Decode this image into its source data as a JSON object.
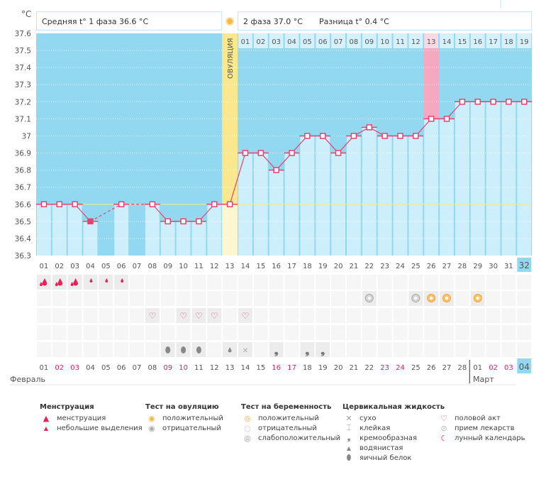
{
  "chart_data": {
    "type": "line",
    "title": "",
    "ylabel": "°C",
    "ylim": [
      36.3,
      37.6
    ],
    "yticks": [
      "37.6",
      "37.5",
      "37.4",
      "37.3",
      "37.2",
      "37.1",
      "37",
      "36.9",
      "36.8",
      "36.7",
      "36.6",
      "36.5",
      "36.4",
      "36.3"
    ],
    "cycle_days": [
      "01",
      "02",
      "03",
      "04",
      "05",
      "06",
      "07",
      "08",
      "09",
      "10",
      "11",
      "12",
      "13",
      "14",
      "15",
      "16",
      "17",
      "18",
      "19",
      "20",
      "21",
      "22",
      "23",
      "24",
      "25",
      "26",
      "27",
      "28",
      "29",
      "30",
      "31",
      "32"
    ],
    "series": [
      {
        "name": "temperature",
        "values": [
          36.6,
          36.6,
          36.6,
          36.5,
          null,
          36.6,
          null,
          36.6,
          36.5,
          36.5,
          36.5,
          36.6,
          36.6,
          36.9,
          36.9,
          36.8,
          36.9,
          37.0,
          37.0,
          36.9,
          37.0,
          37.05,
          37.0,
          37.0,
          37.0,
          37.1,
          37.1,
          37.2,
          37.2,
          37.2,
          37.2,
          37.2
        ]
      }
    ],
    "coverline": 36.6,
    "ovulation_day": 13,
    "ovulation_label": "ОВУЛЯЦИЯ",
    "phase2_days": [
      "01",
      "02",
      "03",
      "04",
      "05",
      "06",
      "07",
      "08",
      "09",
      "10",
      "11",
      "12",
      "13",
      "14",
      "15",
      "16",
      "17",
      "18",
      "19"
    ],
    "highlight_phase2_day": 13,
    "current_day": 32,
    "calendar_dates": [
      "01",
      "02",
      "03",
      "04",
      "05",
      "06",
      "07",
      "08",
      "09",
      "10",
      "11",
      "12",
      "13",
      "14",
      "15",
      "16",
      "17",
      "18",
      "19",
      "20",
      "21",
      "22",
      "23",
      "24",
      "25",
      "26",
      "27",
      "28",
      "01",
      "02",
      "03",
      "04"
    ],
    "weekend_indices": [
      1,
      2,
      8,
      9,
      15,
      16,
      22,
      23,
      29,
      30
    ],
    "months": [
      "Февраль",
      "Март"
    ]
  },
  "header": {
    "unit": "°C",
    "phase1": "Средняя t° 1 фаза 36.6 °C",
    "phase2": "2 фаза 37.0 °C",
    "difference": "Разница t° 0.4 °C"
  },
  "rows": {
    "menstruation": {
      "1": "heavy",
      "2": "heavy",
      "3": "heavy",
      "4": "light",
      "5": "light",
      "6": "light"
    },
    "tests": {
      "22": "preg-weak",
      "25": "preg-weak",
      "26": "preg-pos",
      "27": "preg-pos",
      "29": "preg-pos"
    },
    "sex": [
      8,
      10,
      11,
      12,
      14
    ],
    "fluid": {
      "9": "egg",
      "10": "egg",
      "11": "egg",
      "13": "watery",
      "14": "dry",
      "16": "creamy",
      "18": "creamy",
      "19": "creamy"
    }
  },
  "legend": {
    "menstruation": {
      "title": "Менструация",
      "items": [
        "менструация",
        "небольшие выделения"
      ]
    },
    "ovulation_test": {
      "title": "Тест на овуляцию",
      "items": [
        "положительный",
        "отрицательный"
      ]
    },
    "pregnancy_test": {
      "title": "Тест на беременность",
      "items": [
        "положительный",
        "отрицательный",
        "слабоположительный"
      ]
    },
    "cervical": {
      "title": "Цервикальная жидкость",
      "items": [
        "сухо",
        "клейкая",
        "кремообразная",
        "водянистая",
        "яичный белок"
      ]
    },
    "other": {
      "items": [
        "половой акт",
        "прием лекарств",
        "лунный календарь"
      ]
    }
  },
  "colors": {
    "chart_bg": "#92d8f1",
    "bar": "#cdeefb",
    "line": "#e8436e",
    "ovulation": "#fbe78f",
    "highlight": "#f7a8c0",
    "weekend": "#e8215a"
  }
}
